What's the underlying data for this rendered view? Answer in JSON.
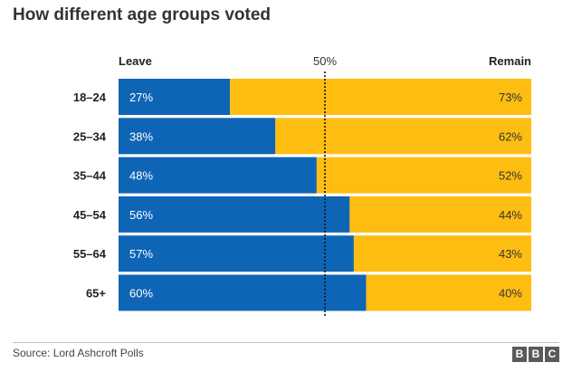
{
  "title": "How different age groups voted",
  "footer": {
    "source": "Source: Lord Ashcroft Polls",
    "logo_letters": [
      "B",
      "B",
      "C"
    ]
  },
  "colors": {
    "leave": "#0f65b5",
    "remain": "#fdbd11",
    "text": "#222222"
  },
  "chart_data": {
    "type": "bar",
    "orientation": "horizontal",
    "stacked": true,
    "categories": [
      "18–24",
      "25–34",
      "35–44",
      "45–54",
      "55–64",
      "65+"
    ],
    "series": [
      {
        "name": "Leave",
        "values": [
          27,
          38,
          48,
          56,
          57,
          60
        ],
        "labels": [
          "27%",
          "38%",
          "48%",
          "56%",
          "57%",
          "60%"
        ]
      },
      {
        "name": "Remain",
        "values": [
          73,
          62,
          52,
          44,
          43,
          40
        ],
        "labels": [
          "73%",
          "62%",
          "52%",
          "44%",
          "43%",
          "40%"
        ]
      }
    ],
    "xlim": [
      0,
      100
    ],
    "reference_line": {
      "value": 50,
      "label": "50%",
      "style": "dotted"
    },
    "legend": "top"
  }
}
